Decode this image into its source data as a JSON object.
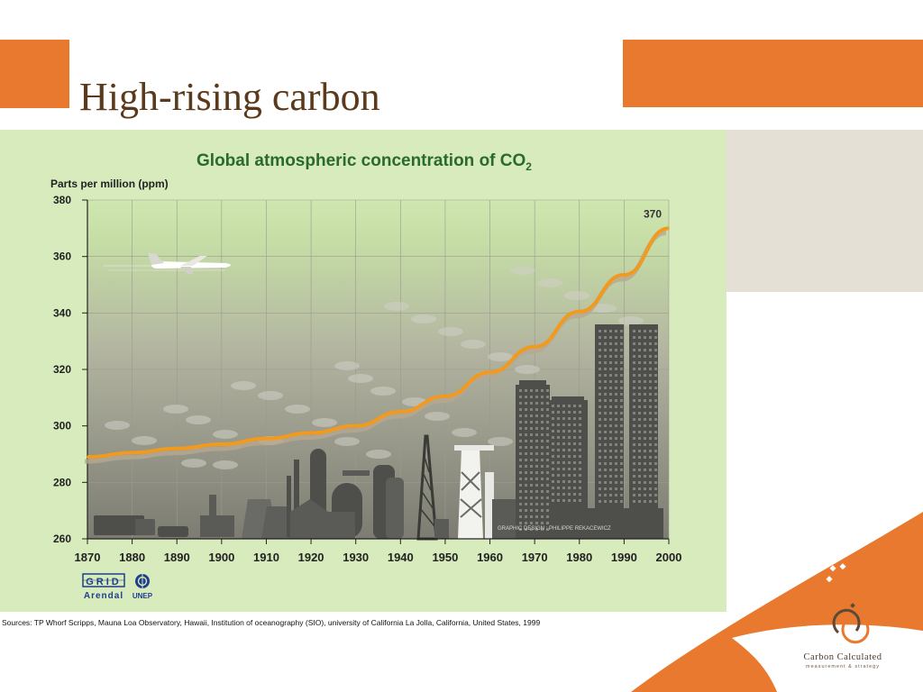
{
  "slide": {
    "title": "High-rising carbon",
    "source": "Sources: TP Whorf  Scripps, Mauna Loa Observatory, Hawaii, Institution of oceanography (SIO), university of California La Jolla, California, United States, 1999",
    "brand_name": "Carbon Calculated",
    "brand_tagline": "measurement & strategy",
    "colors": {
      "orange": "#e8792e",
      "title_brown": "#5a3a1a",
      "panel_grey": "#e4e0d6"
    }
  },
  "figure": {
    "grid_label": "GRID",
    "arendal_label": "Arendal",
    "unep_label": "UNEP",
    "credit": "GRAPHIC DESIGN : PHILIPPE REKACEWICZ",
    "colors": {
      "bg_top": "#cfe6b0",
      "bg_bottom": "#7e7e74",
      "line": "#f29a1e",
      "title": "#2a6a2a",
      "city": "#4e4e4a"
    }
  },
  "chart_data": {
    "type": "line",
    "title": "Global atmospheric concentration of CO",
    "title_subscript": "2",
    "ylabel": "Parts per million (ppm)",
    "xlabel": "",
    "x": [
      1870,
      1880,
      1890,
      1900,
      1910,
      1920,
      1930,
      1940,
      1950,
      1960,
      1970,
      1980,
      1990,
      2000
    ],
    "xlim": [
      1870,
      2000
    ],
    "ylim": [
      260,
      380
    ],
    "yticks": [
      260,
      280,
      300,
      320,
      340,
      360,
      380
    ],
    "series": [
      {
        "values": [
          289,
          290.5,
          292,
          293.5,
          295.5,
          297.5,
          300,
          305,
          310.5,
          319,
          328,
          340.5,
          353.5,
          370
        ]
      }
    ],
    "annotations": [
      {
        "x": 2000,
        "y": 370,
        "text": "370"
      }
    ],
    "grid": true,
    "legend": "none"
  }
}
